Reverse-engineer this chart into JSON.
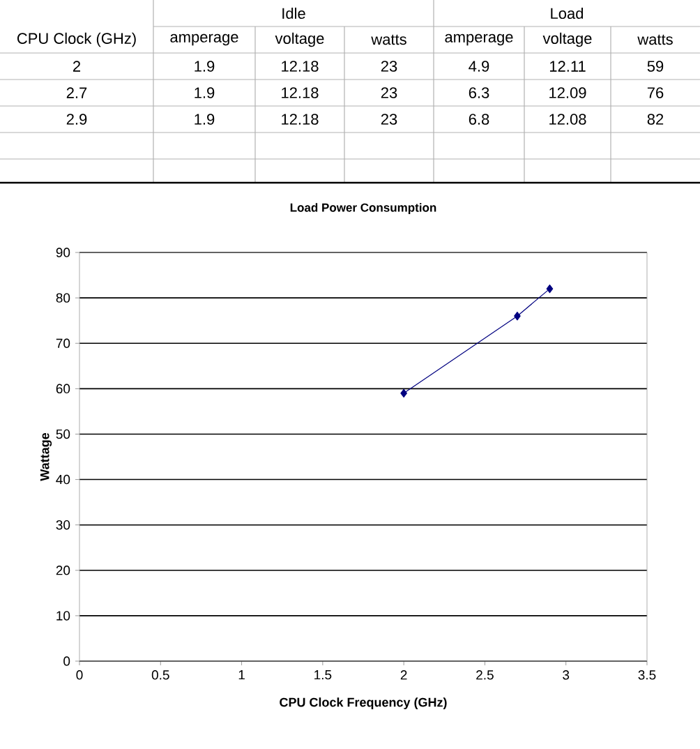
{
  "chart_data": [
    {
      "type": "other",
      "annotations": [
        "Idle",
        "Load"
      ],
      "categories": [
        "CPU Clock (GHz)",
        "amperage",
        "voltage",
        "watts",
        "amperage",
        "voltage",
        "watts"
      ],
      "cell_labels": [
        [
          "2",
          "1.9",
          "12.18",
          "23",
          "4.9",
          "12.11",
          "59"
        ],
        [
          "2.7",
          "1.9",
          "12.18",
          "23",
          "6.3",
          "12.09",
          "76"
        ],
        [
          "2.9",
          "1.9",
          "12.18",
          "23",
          "6.8",
          "12.08",
          "82"
        ]
      ]
    },
    {
      "type": "line",
      "title": "Load Power Consumption",
      "xlabel": "CPU Clock Frequency (GHz)",
      "ylabel": "Wattage",
      "x": [
        2,
        2.7,
        2.9
      ],
      "values": [
        59,
        76,
        82
      ],
      "color": "#000080",
      "marker": "diamond",
      "line_style": "solid",
      "xlim": [
        0,
        3.5
      ],
      "xticks": [
        0,
        0.5,
        1,
        1.5,
        2,
        2.5,
        3,
        3.5
      ],
      "ylim": [
        0,
        90
      ],
      "yticks": [
        0,
        10,
        20,
        30,
        40,
        50,
        60,
        70,
        80,
        90
      ],
      "grid": "y"
    }
  ]
}
